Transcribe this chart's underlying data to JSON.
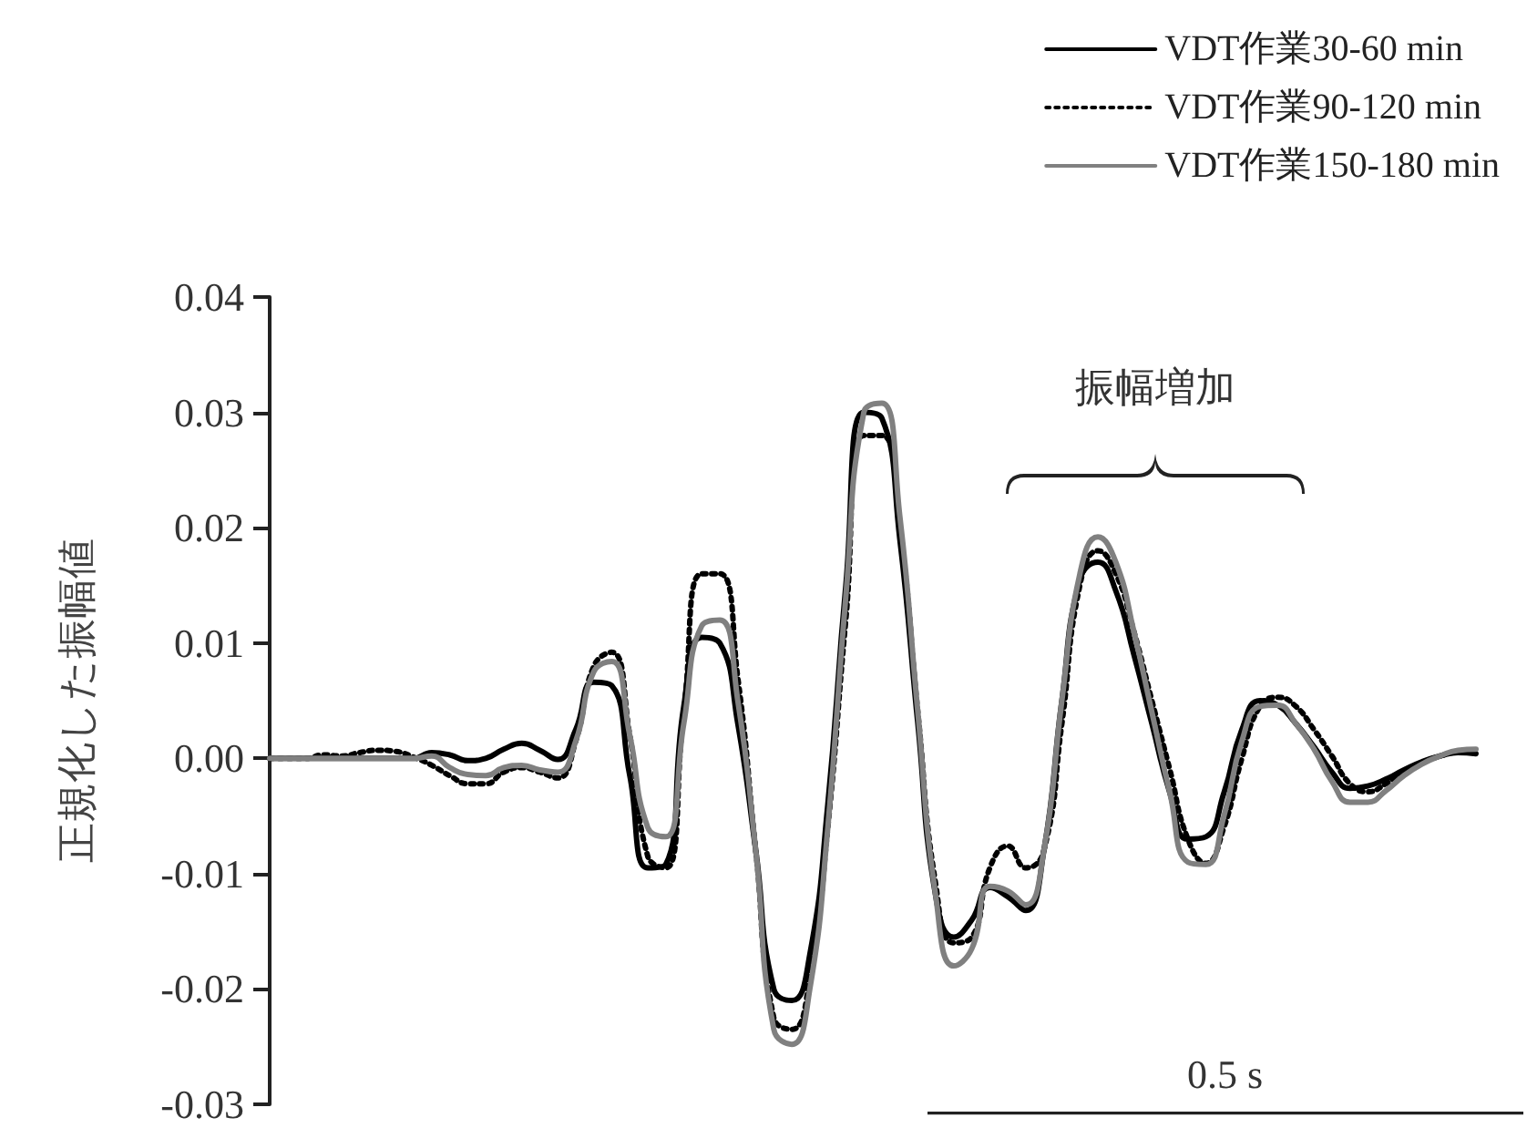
{
  "chart_data": {
    "type": "line",
    "ylabel": "正規化した振幅値",
    "categories": [
      null,
      null,
      null,
      null,
      null,
      null,
      null,
      null,
      null,
      null,
      null,
      null,
      null,
      null,
      null,
      null,
      null,
      null,
      null,
      null,
      null,
      null,
      null,
      null,
      null,
      null,
      null,
      null,
      null,
      null,
      null,
      null,
      null,
      null,
      null,
      null,
      null,
      null,
      null,
      null,
      null,
      null,
      null,
      null,
      null,
      null,
      null,
      null,
      null,
      null,
      null,
      null,
      null,
      null,
      null,
      null,
      null,
      null,
      null,
      null,
      null,
      null,
      null,
      null,
      null,
      null,
      null,
      null
    ],
    "series": [
      {
        "name": "VDT作業30-60 min",
        "color": "#000000",
        "line_style": "solid",
        "values": [
          0,
          0,
          0,
          0,
          0,
          0,
          0,
          0,
          0,
          0.0005,
          0.0003,
          -0.0002,
          0,
          0.0008,
          0.0013,
          0.0007,
          -0.0001,
          0.0025,
          0.0066,
          0.0063,
          -0.0015,
          -0.0095,
          -0.0092,
          0.0045,
          0.0105,
          0.01,
          0.003,
          -0.008,
          -0.02,
          -0.021,
          -0.017,
          -0.004,
          0.015,
          0.03,
          0.0295,
          0.019,
          0.003,
          -0.012,
          -0.0155,
          -0.014,
          -0.0112,
          -0.012,
          -0.0132,
          -0.008,
          0.005,
          0.0155,
          0.017,
          0.0145,
          0.009,
          0.003,
          -0.003,
          -0.007,
          -0.0068,
          -0.003,
          0.0025,
          0.005,
          0.0046,
          0.003,
          0.001,
          -0.0012,
          -0.0026,
          -0.0024,
          -0.0018,
          -0.001,
          -0.0003,
          0.0002,
          0.0005,
          0.0004
        ]
      },
      {
        "name": "VDT作業90-120 min",
        "color": "#000000",
        "line_style": "dotted",
        "values": [
          0,
          0,
          0,
          0.0003,
          0.0002,
          0.0005,
          0.0007,
          0.0006,
          0.0001,
          -0.0006,
          -0.0015,
          -0.0022,
          -0.0022,
          -0.0012,
          -0.0008,
          -0.0012,
          -0.0017,
          0.0015,
          0.008,
          0.0092,
          0.002,
          -0.0085,
          -0.0095,
          0.004,
          0.016,
          0.016,
          0.007,
          -0.008,
          -0.0225,
          -0.0235,
          -0.019,
          -0.006,
          0.012,
          0.028,
          0.028,
          0.02,
          0.004,
          -0.011,
          -0.016,
          -0.0155,
          -0.0095,
          -0.0076,
          -0.0095,
          -0.008,
          0.003,
          0.015,
          0.018,
          0.016,
          0.011,
          0.005,
          -0.001,
          -0.007,
          -0.0091,
          -0.006,
          0,
          0.0045,
          0.0053,
          0.0045,
          0.0025,
          0.0002,
          -0.0022,
          -0.0029,
          -0.0022,
          -0.0012,
          -0.0004,
          0.0002,
          0.0005,
          0.0005
        ]
      },
      {
        "name": "VDT作業150-180 min",
        "color": "#808080",
        "line_style": "solid",
        "values": [
          0,
          0,
          0,
          0,
          0,
          0,
          0,
          0,
          0,
          0.0002,
          -0.0008,
          -0.0014,
          -0.0015,
          -0.0008,
          -0.0006,
          -0.001,
          -0.0012,
          0.0015,
          0.0075,
          0.0084,
          0.002,
          -0.006,
          -0.0068,
          0.003,
          0.0115,
          0.012,
          0.005,
          -0.008,
          -0.0235,
          -0.0248,
          -0.02,
          -0.006,
          0.014,
          0.03,
          0.0308,
          0.021,
          0.004,
          -0.012,
          -0.018,
          -0.0165,
          -0.0111,
          -0.0115,
          -0.0127,
          -0.008,
          0.005,
          0.016,
          0.0192,
          0.017,
          0.011,
          0.004,
          -0.003,
          -0.009,
          -0.0092,
          -0.005,
          0.0015,
          0.0045,
          0.0046,
          0.003,
          0.0008,
          -0.002,
          -0.0038,
          -0.0038,
          -0.0028,
          -0.0015,
          -0.0005,
          0.0002,
          0.0007,
          0.0008
        ]
      }
    ],
    "ylim": [
      -0.03,
      0.04
    ],
    "yticks": [
      -0.03,
      -0.02,
      -0.01,
      {
        "value": 0,
        "label": "0.00"
      },
      0.01,
      0.02,
      0.03,
      0.04
    ],
    "grid": false,
    "legend": "top right",
    "tick_labels": "y",
    "marker": "none",
    "annotations": [
      "振幅増加",
      "0.5 s"
    ]
  }
}
